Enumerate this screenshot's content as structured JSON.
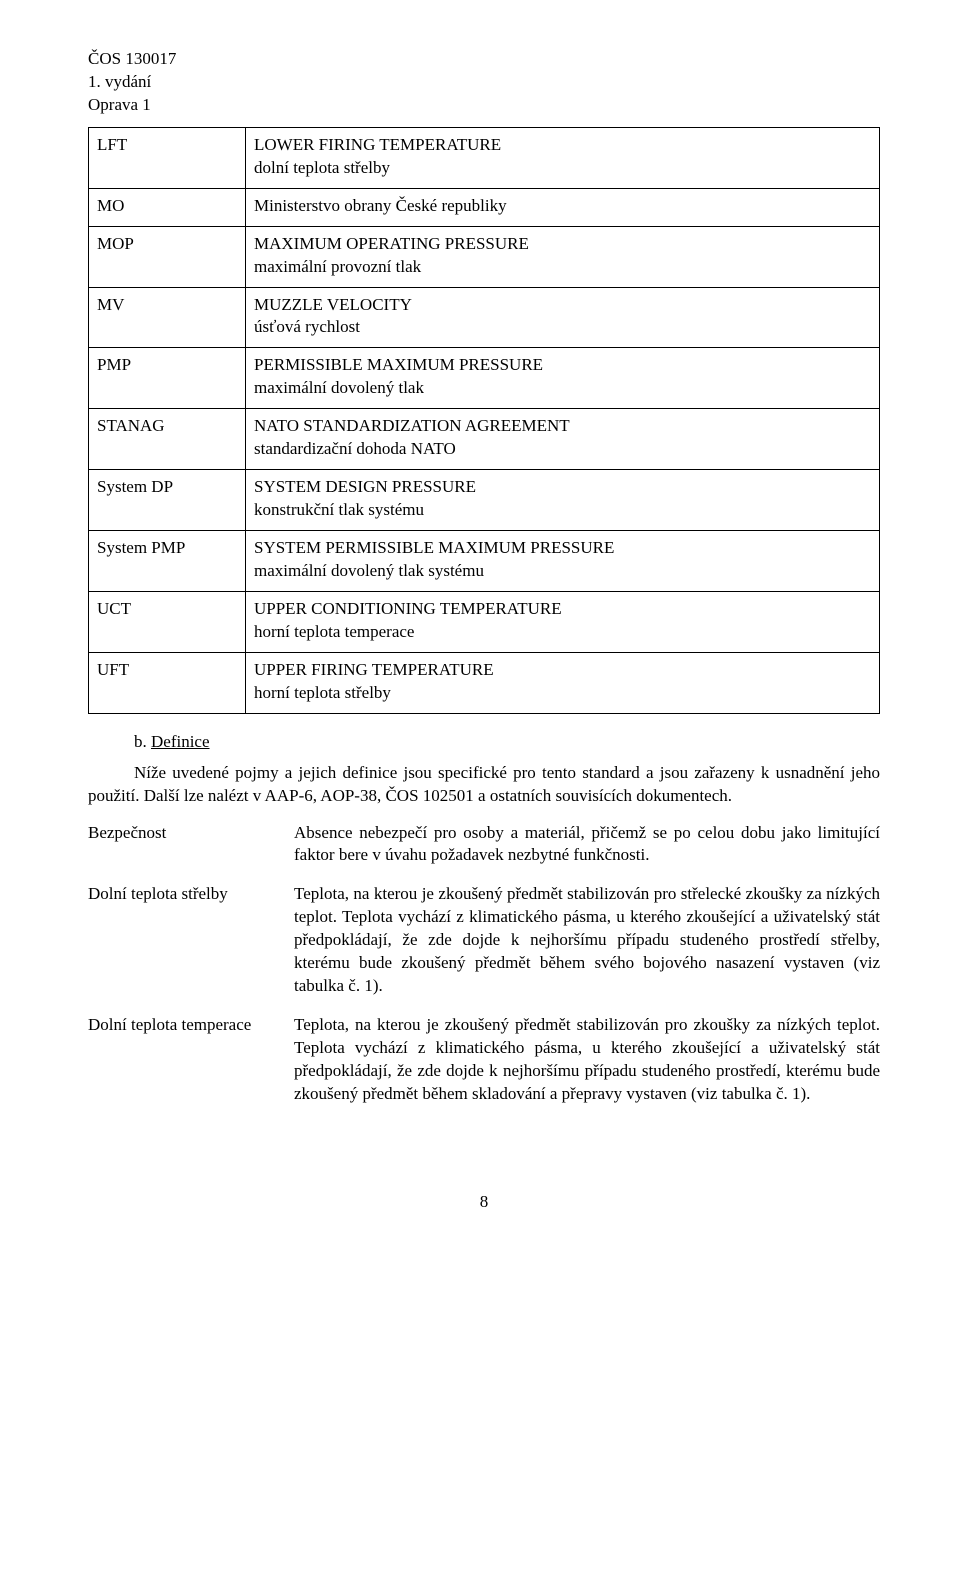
{
  "header": {
    "doc_id": "ČOS 130017",
    "edition": "1. vydání",
    "fix": "Oprava 1"
  },
  "abbr_table": {
    "rows": [
      {
        "abbr": "LFT",
        "full": "LOWER FIRING TEMPERATURE",
        "cz": "dolní teplota střelby"
      },
      {
        "abbr": "MO",
        "full": "Ministerstvo obrany České republiky",
        "cz": ""
      },
      {
        "abbr": "MOP",
        "full": "MAXIMUM OPERATING PRESSURE",
        "cz": "maximální provozní tlak"
      },
      {
        "abbr": "MV",
        "full": "MUZZLE VELOCITY",
        "cz": "úsťová rychlost"
      },
      {
        "abbr": "PMP",
        "full": "PERMISSIBLE MAXIMUM PRESSURE",
        "cz": "maximální dovolený tlak"
      },
      {
        "abbr": "STANAG",
        "full": "NATO STANDARDIZATION AGREEMENT",
        "cz": "standardizační dohoda NATO"
      },
      {
        "abbr": "System DP",
        "full": "SYSTEM DESIGN PRESSURE",
        "cz": "konstrukční tlak systému"
      },
      {
        "abbr": "System PMP",
        "full": "SYSTEM PERMISSIBLE MAXIMUM PRESSURE",
        "cz": "maximální dovolený tlak systému"
      },
      {
        "abbr": "UCT",
        "full": "UPPER CONDITIONING TEMPERATURE",
        "cz": "horní teplota temperace"
      },
      {
        "abbr": "UFT",
        "full": "UPPER FIRING TEMPERATURE",
        "cz": "horní teplota střelby"
      }
    ]
  },
  "section_b": {
    "letter": "b.",
    "title": "Definice",
    "intro": "Níže uvedené pojmy a jejich definice jsou specifické pro tento standard a jsou zařazeny k usnadnění jeho použití. Další lze nalézt v AAP-6, AOP-38, ČOS 102501 a ostatních souvisících dokumentech."
  },
  "glossary": {
    "items": [
      {
        "term": "Bezpečnost",
        "desc": "Absence nebezpečí pro osoby a materiál, přičemž se po celou dobu jako limitující faktor bere v úvahu požadavek nezbytné funkčnosti."
      },
      {
        "term": "Dolní teplota střelby",
        "desc": "Teplota, na kterou je zkoušený předmět stabilizován pro střelecké zkoušky za nízkých teplot. Teplota vychází z klimatického pásma, u kterého zkoušející a uživatelský stát předpokládají, že zde dojde k nejhoršímu případu studeného prostředí střelby, kterému bude zkoušený předmět během svého bojového nasazení vystaven (viz tabulka č. 1)."
      },
      {
        "term": "Dolní teplota temperace",
        "desc": "Teplota, na kterou je zkoušený předmět stabilizován pro zkoušky za nízkých teplot. Teplota vychází z klimatického pásma, u kterého zkoušející a uživatelský stát předpokládají, že zde dojde k nejhoršímu případu studeného prostředí, kterému bude zkoušený předmět během skladování a přepravy vystaven (viz tabulka č. 1)."
      }
    ]
  },
  "page_number": "8"
}
